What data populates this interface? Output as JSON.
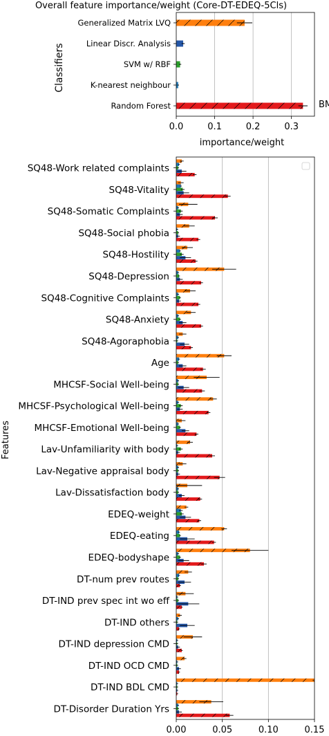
{
  "figure_title": "Overall feature importance/weight (Core-DT-EDEQ-5Cls)",
  "series_colors": {
    "Generalized Matrix LVQ": "#ff7f0e",
    "Linear Discr. Analysis": "#2557a7",
    "SVM w/ RBF": "#2ca02c",
    "K-nearest neighbour": "#1f77b4",
    "Random Forest": "#e31a1c"
  },
  "chart_data": [
    {
      "type": "bar",
      "orientation": "horizontal",
      "title": "Overall feature importance/weight (Core-DT-EDEQ-5Cls)",
      "xlabel": "importance/weight",
      "ylabel": "Classifiers",
      "xlim": [
        0,
        0.36
      ],
      "xticks": [
        "0.0",
        "0.1",
        "0.2",
        "0.3"
      ],
      "grid": "x",
      "categories": [
        "Generalized Matrix LVQ",
        "Linear Discr. Analysis",
        "SVM w/ RBF",
        "K-nearest neighbour",
        "Random Forest"
      ],
      "values": [
        0.178,
        0.018,
        0.01,
        0.005,
        0.33
      ],
      "errors": [
        0.02,
        0.004,
        0.003,
        0.002,
        0.012
      ],
      "annotations": [
        {
          "category": "Random Forest",
          "text": "BMI"
        }
      ]
    },
    {
      "type": "bar",
      "orientation": "horizontal",
      "title": "",
      "xlabel": "",
      "ylabel": "Features",
      "xlim": [
        0,
        0.15
      ],
      "xticks": [
        "0.00",
        "0.05",
        "0.10",
        "0.15"
      ],
      "grid": "x",
      "legend": "top-right",
      "categories": [
        "SQ48-Work related complaints",
        "SQ48-Vitality",
        "SQ48-Somatic Complaints",
        "SQ48-Social phobia",
        "SQ48-Hostility",
        "SQ48-Depression",
        "SQ48-Cognitive Complaints",
        "SQ48-Anxiety",
        "SQ48-Agoraphobia",
        "Age",
        "MHCSF-Social Well-being",
        "MHCSF-Psychological Well-being",
        "MHCSF-Emotional Well-being",
        "Lav-Unfamiliarity with body",
        "Lav-Negative appraisal body",
        "Lav-Dissatisfaction body",
        "EDEQ-weight",
        "EDEQ-eating",
        "EDEQ-bodyshape",
        "DT-num prev routes",
        "DT-IND prev spec int wo eff",
        "DT-IND others",
        "DT-IND depression CMD",
        "DT-IND OCD CMD",
        "DT-IND BDL CMD",
        "DT-Disorder Duration Yrs"
      ],
      "series": [
        {
          "name": "Generalized Matrix LVQ",
          "values": [
            0.006,
            0.005,
            0.013,
            0.014,
            0.012,
            0.052,
            0.015,
            0.016,
            0.007,
            0.052,
            0.033,
            0.04,
            0.006,
            0.015,
            0.007,
            0.012,
            0.011,
            0.052,
            0.08,
            0.013,
            0.01,
            0.004,
            0.018,
            0.009,
            0.15,
            0.038
          ],
          "errors": [
            0.002,
            0.003,
            0.01,
            0.006,
            0.006,
            0.013,
            0.006,
            0.005,
            0.004,
            0.008,
            0.014,
            0.004,
            0.004,
            0.003,
            0.004,
            0.016,
            0.002,
            0.003,
            0.02,
            0.004,
            0.009,
            0.002,
            0.01,
            0.002,
            0.002,
            0.013
          ]
        },
        {
          "name": "K-nearest neighbour",
          "values": [
            0.003,
            0.005,
            0.002,
            0.001,
            0.004,
            0.002,
            0.002,
            0.002,
            0.002,
            0.003,
            0.002,
            0.002,
            0.002,
            0.001,
            0.002,
            0.002,
            0.005,
            0.003,
            0.002,
            0.003,
            0.001,
            0.002,
            0.001,
            0.001,
            0.001,
            0.002
          ],
          "errors": [
            0.001,
            0.001,
            0.001,
            0.001,
            0.001,
            0.001,
            0.001,
            0.001,
            0.001,
            0.001,
            0.001,
            0.001,
            0.001,
            0.001,
            0.001,
            0.001,
            0.002,
            0.001,
            0.001,
            0.001,
            0.001,
            0.001,
            0.001,
            0.001,
            0.001,
            0.001
          ]
        },
        {
          "name": "SVM w/ RBF",
          "values": [
            0.002,
            0.007,
            0.005,
            0.002,
            0.006,
            0.003,
            0.004,
            0.004,
            0.001,
            0.002,
            0.002,
            0.005,
            0.004,
            0.005,
            0.002,
            0.002,
            0.006,
            0.004,
            0.004,
            0.002,
            0.002,
            0.001,
            0.001,
            0.001,
            0.001,
            0.002
          ],
          "errors": [
            0.001,
            0.002,
            0.002,
            0.001,
            0.002,
            0.001,
            0.001,
            0.001,
            0.001,
            0.001,
            0.001,
            0.002,
            0.001,
            0.002,
            0.001,
            0.001,
            0.002,
            0.001,
            0.001,
            0.001,
            0.001,
            0.001,
            0.001,
            0.001,
            0.001,
            0.001
          ]
        },
        {
          "name": "Linear Discr. Analysis",
          "values": [
            0.006,
            0.008,
            0.004,
            0.002,
            0.01,
            0.004,
            0.003,
            0.007,
            0.009,
            0.007,
            0.008,
            0.004,
            0.01,
            0.002,
            0.002,
            0.006,
            0.01,
            0.012,
            0.008,
            0.009,
            0.013,
            0.012,
            0.002,
            0.003,
            0.001,
            0.003
          ],
          "errors": [
            0.005,
            0.006,
            0.003,
            0.002,
            0.006,
            0.003,
            0.002,
            0.004,
            0.005,
            0.004,
            0.006,
            0.003,
            0.004,
            0.002,
            0.002,
            0.003,
            0.006,
            0.008,
            0.006,
            0.007,
            0.012,
            0.008,
            0.002,
            0.002,
            0.001,
            0.003
          ]
        },
        {
          "name": "Random Forest",
          "values": [
            0.02,
            0.056,
            0.042,
            0.024,
            0.021,
            0.027,
            0.024,
            0.027,
            0.016,
            0.029,
            0.028,
            0.035,
            0.022,
            0.039,
            0.047,
            0.026,
            0.025,
            0.041,
            0.03,
            0.004,
            0.006,
            0.003,
            0.006,
            0.003,
            0.001,
            0.058
          ],
          "errors": [
            0.002,
            0.003,
            0.003,
            0.002,
            0.002,
            0.002,
            0.002,
            0.002,
            0.002,
            0.003,
            0.003,
            0.002,
            0.002,
            0.003,
            0.006,
            0.002,
            0.002,
            0.002,
            0.003,
            0.001,
            0.001,
            0.001,
            0.001,
            0.001,
            0.001,
            0.004
          ]
        }
      ]
    }
  ]
}
